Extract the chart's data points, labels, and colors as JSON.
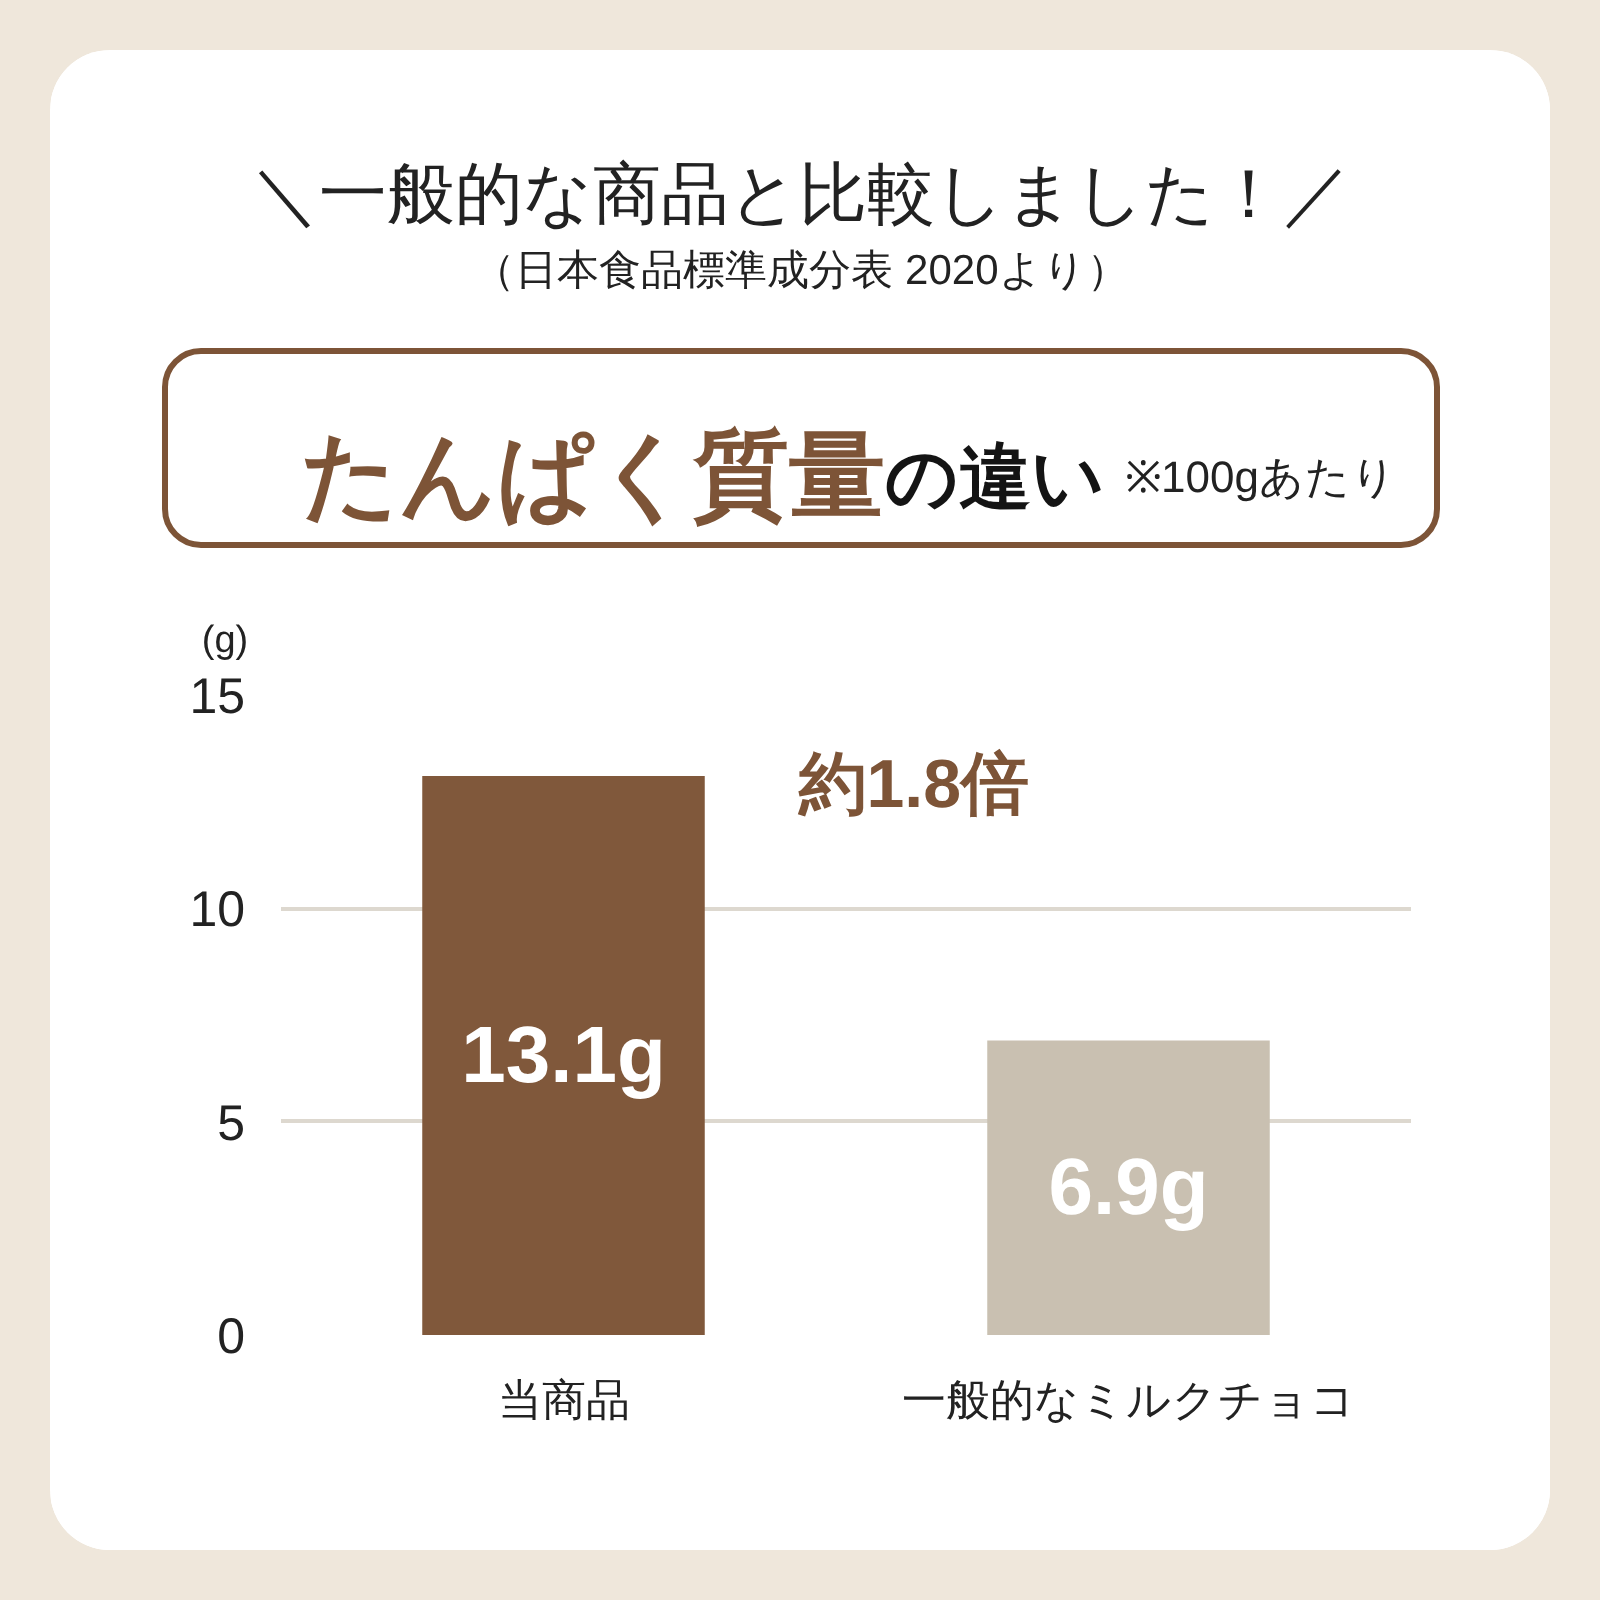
{
  "chart_data": {
    "type": "bar",
    "title": "＼一般的な商品と比較しました！／",
    "subtitle": "（日本食品標準成分表 2020より）",
    "ylabel": "(g)",
    "categories": [
      "当商品",
      "一般的なミルクチョコ"
    ],
    "values": [
      13.1,
      6.9
    ],
    "colors": [
      "#80583b",
      "#c9c0b1"
    ],
    "value_labels": [
      "13.1g",
      "6.9g"
    ],
    "ylim": [
      0,
      15
    ],
    "yticks": [
      0,
      5,
      10,
      15
    ],
    "grid": "y",
    "annotations": [
      "たんぱく質量",
      "の違い",
      "※100gあたり",
      "約1.8倍"
    ]
  }
}
